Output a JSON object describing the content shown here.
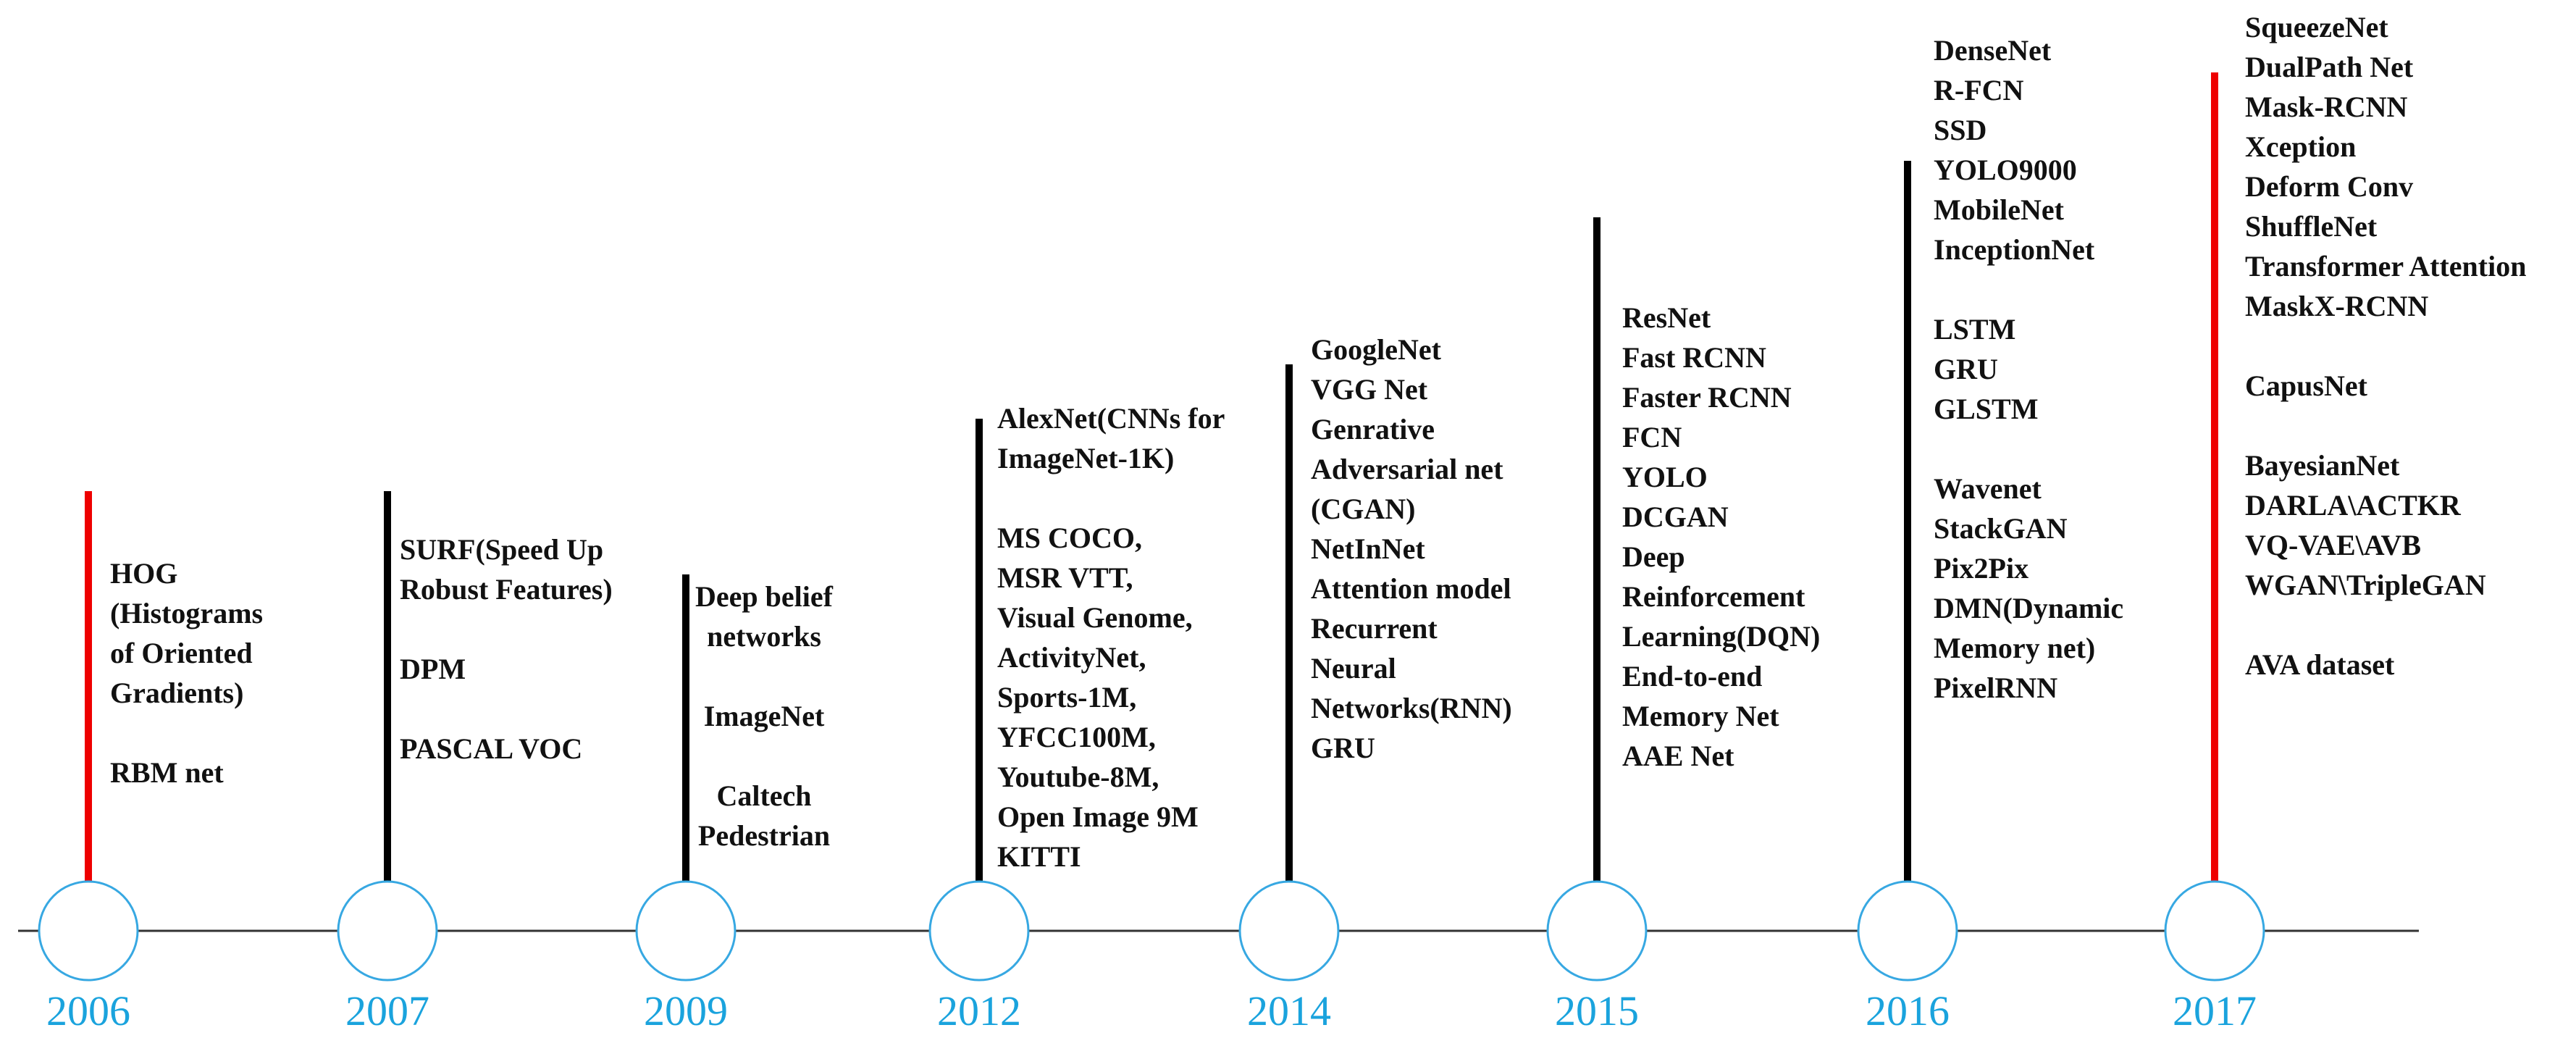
{
  "colors": {
    "year_text": "#1aa3dd",
    "circle_stroke": "#37a8e2",
    "stem_black": "#000000",
    "stem_red": "#ee0000",
    "axis": "#333333"
  },
  "timeline": [
    {
      "year": "2006",
      "stem_color": "red",
      "lines": [
        "HOG",
        "(Histograms",
        "of Oriented",
        "Gradients)",
        "",
        "RBM net"
      ]
    },
    {
      "year": "2007",
      "stem_color": "black",
      "lines": [
        "SURF(Speed Up",
        "Robust Features)",
        "",
        "DPM",
        "",
        "PASCAL VOC"
      ]
    },
    {
      "year": "2009",
      "stem_color": "black",
      "lines": [
        "Deep belief",
        "networks",
        "",
        "ImageNet",
        "",
        "Caltech",
        "Pedestrian"
      ]
    },
    {
      "year": "2012",
      "stem_color": "black",
      "lines": [
        "AlexNet(CNNs for",
        "ImageNet-1K)",
        "",
        "MS COCO,",
        "MSR VTT,",
        "Visual Genome,",
        "ActivityNet,",
        "Sports-1M,",
        "YFCC100M,",
        "Youtube-8M,",
        "Open Image 9M",
        "KITTI"
      ]
    },
    {
      "year": "2014",
      "stem_color": "black",
      "lines": [
        "GoogleNet",
        "VGG Net",
        "Genrative",
        "Adversarial net",
        "(CGAN)",
        "NetInNet",
        "Attention model",
        "Recurrent",
        "Neural",
        "Networks(RNN)",
        "GRU"
      ]
    },
    {
      "year": "2015",
      "stem_color": "black",
      "lines": [
        "ResNet",
        "Fast RCNN",
        "Faster RCNN",
        "FCN",
        "YOLO",
        "DCGAN",
        "Deep",
        "Reinforcement",
        "Learning(DQN)",
        "End-to-end",
        "Memory Net",
        "AAE Net"
      ]
    },
    {
      "year": "2016",
      "stem_color": "black",
      "lines": [
        "DenseNet",
        "R-FCN",
        "SSD",
        "YOLO9000",
        "MobileNet",
        "InceptionNet",
        "",
        "LSTM",
        "GRU",
        "GLSTM",
        "",
        "Wavenet",
        "StackGAN",
        "Pix2Pix",
        "DMN(Dynamic",
        "Memory net)",
        "PixelRNN"
      ]
    },
    {
      "year": "2017",
      "stem_color": "red",
      "lines": [
        "SqueezeNet",
        "DualPath Net",
        "Mask-RCNN",
        "Xception",
        "Deform Conv",
        "ShuffleNet",
        "Transformer Attention",
        "MaskX-RCNN",
        "",
        "CapusNet",
        "",
        "BayesianNet",
        "DARLA\\ACTKR",
        "VQ-VAE\\AVB",
        "WGAN\\TripleGAN",
        "",
        "AVA dataset"
      ]
    }
  ]
}
